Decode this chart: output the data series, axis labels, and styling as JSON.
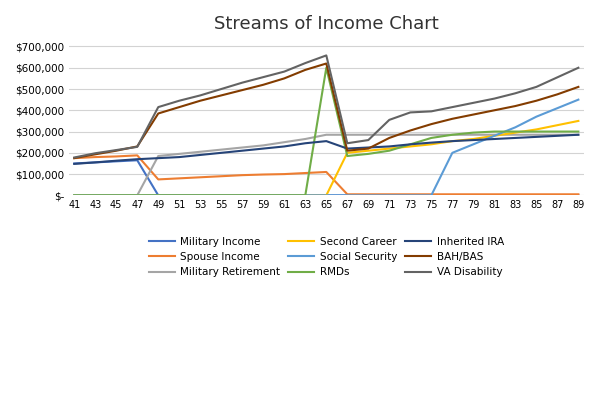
{
  "title": "Streams of Income Chart",
  "ages": [
    41,
    43,
    45,
    47,
    49,
    51,
    53,
    55,
    57,
    59,
    61,
    63,
    65,
    67,
    69,
    71,
    73,
    75,
    77,
    79,
    81,
    83,
    85,
    87,
    89
  ],
  "series": {
    "Military Income": {
      "color": "#4472C4",
      "values": [
        150000,
        155000,
        160000,
        165000,
        0,
        0,
        0,
        0,
        0,
        0,
        0,
        0,
        0,
        0,
        0,
        0,
        0,
        0,
        0,
        0,
        0,
        0,
        0,
        0,
        0
      ]
    },
    "Spouse Income": {
      "color": "#ED7D31",
      "values": [
        175000,
        180000,
        183000,
        188000,
        75000,
        80000,
        85000,
        90000,
        95000,
        98000,
        100000,
        105000,
        110000,
        5000,
        5000,
        5000,
        5000,
        5000,
        5000,
        5000,
        5000,
        5000,
        5000,
        5000,
        5000
      ]
    },
    "Military Retirement": {
      "color": "#A5A5A5",
      "values": [
        0,
        0,
        0,
        0,
        185000,
        195000,
        205000,
        215000,
        225000,
        235000,
        250000,
        265000,
        285000,
        285000,
        285000,
        285000,
        285000,
        285000,
        285000,
        285000,
        285000,
        285000,
        285000,
        285000,
        285000
      ]
    },
    "Second Career": {
      "color": "#FFC000",
      "values": [
        0,
        0,
        0,
        0,
        0,
        0,
        0,
        0,
        0,
        0,
        0,
        0,
        0,
        200000,
        210000,
        220000,
        230000,
        240000,
        255000,
        265000,
        280000,
        295000,
        310000,
        330000,
        350000
      ]
    },
    "Social Security": {
      "color": "#5B9BD5",
      "values": [
        0,
        0,
        0,
        0,
        0,
        0,
        0,
        0,
        0,
        0,
        0,
        0,
        0,
        0,
        0,
        0,
        0,
        0,
        200000,
        240000,
        280000,
        320000,
        370000,
        410000,
        450000
      ]
    },
    "RMDs": {
      "color": "#70AD47",
      "values": [
        0,
        0,
        0,
        0,
        0,
        0,
        0,
        0,
        0,
        0,
        0,
        0,
        600000,
        185000,
        195000,
        210000,
        240000,
        270000,
        285000,
        295000,
        300000,
        300000,
        300000,
        300000,
        300000
      ]
    },
    "Inherited IRA": {
      "color": "#264478",
      "values": [
        148000,
        155000,
        163000,
        170000,
        175000,
        180000,
        190000,
        200000,
        210000,
        220000,
        230000,
        245000,
        255000,
        220000,
        225000,
        230000,
        240000,
        248000,
        255000,
        260000,
        265000,
        270000,
        275000,
        280000,
        285000
      ]
    },
    "BAH/BAS": {
      "color": "#833C00",
      "values": [
        175000,
        193000,
        210000,
        230000,
        385000,
        415000,
        445000,
        470000,
        495000,
        520000,
        550000,
        590000,
        620000,
        210000,
        220000,
        270000,
        305000,
        335000,
        360000,
        380000,
        400000,
        420000,
        445000,
        475000,
        510000
      ]
    },
    "VA Disability": {
      "color": "#636363",
      "values": [
        178000,
        198000,
        213000,
        228000,
        415000,
        445000,
        470000,
        500000,
        530000,
        556000,
        582000,
        622000,
        658000,
        245000,
        260000,
        355000,
        390000,
        395000,
        415000,
        435000,
        455000,
        480000,
        510000,
        555000,
        600000
      ]
    }
  },
  "ylim": [
    0,
    730000
  ],
  "yticks": [
    0,
    100000,
    200000,
    300000,
    400000,
    500000,
    600000,
    700000
  ],
  "ytick_labels": [
    "$-",
    "$100,000",
    "$200,000",
    "$300,000",
    "$400,000",
    "$500,000",
    "$600,000",
    "$700,000"
  ],
  "xticks": [
    41,
    43,
    45,
    47,
    49,
    51,
    53,
    55,
    57,
    59,
    61,
    63,
    65,
    67,
    69,
    71,
    73,
    75,
    77,
    79,
    81,
    83,
    85,
    87,
    89
  ],
  "legend_order": [
    "Military Income",
    "Spouse Income",
    "Military Retirement",
    "Second Career",
    "Social Security",
    "RMDs",
    "Inherited IRA",
    "BAH/BAS",
    "VA Disability"
  ],
  "background_color": "#FFFFFF",
  "grid_color": "#D3D3D3"
}
